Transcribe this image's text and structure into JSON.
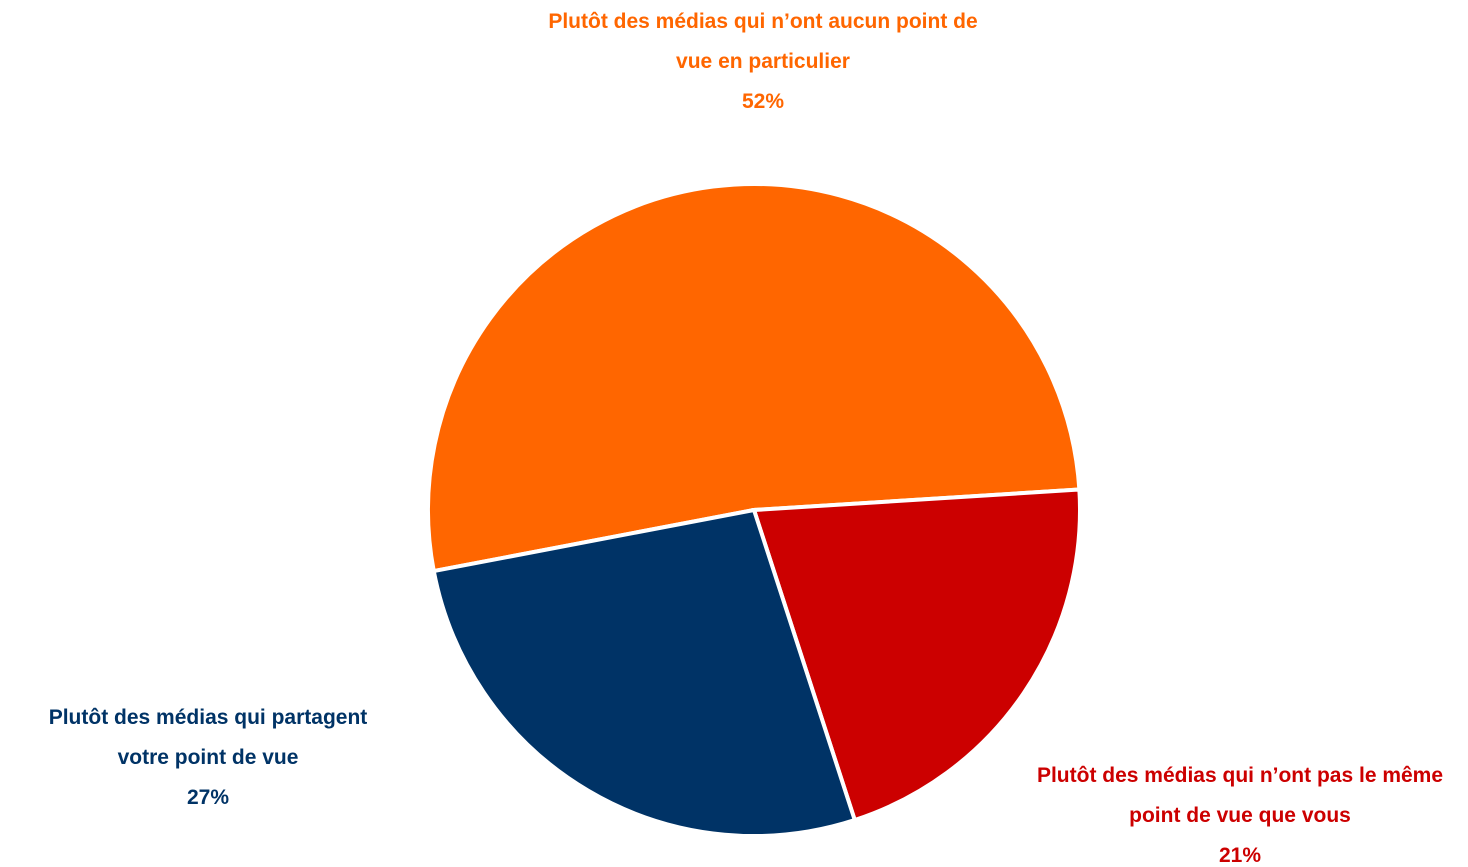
{
  "chart_data": {
    "type": "pie",
    "categories": [
      "Plutôt des médias qui n’ont aucun point de vue en particulier",
      "Plutôt des médias qui n’ont pas le même point de vue que vous",
      "Plutôt des médias qui partagent votre point de vue"
    ],
    "values": [
      52,
      21,
      27
    ],
    "value_labels": [
      "52%",
      "21%",
      "27%"
    ],
    "colors": [
      "#ff6600",
      "#cc0000",
      "#003366"
    ]
  }
}
